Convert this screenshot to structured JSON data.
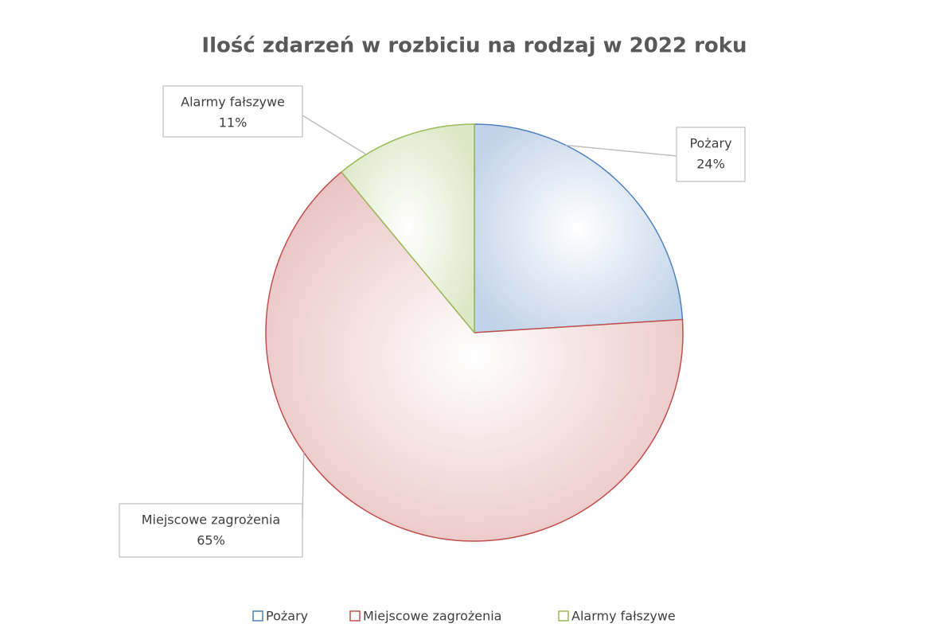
{
  "chart_data": {
    "type": "pie",
    "title": "Ilość zdarzeń w rozbiciu na rodzaj w 2022 roku",
    "categories": [
      "Pożary",
      "Miejscowe zagrożenia",
      "Alarmy fałszywe"
    ],
    "values": [
      24,
      65,
      11
    ],
    "value_labels": [
      "24%",
      "65%",
      "11%"
    ],
    "colors": [
      "#4f81bd",
      "#c0504d",
      "#9bbb59"
    ],
    "legend": "bottom"
  }
}
